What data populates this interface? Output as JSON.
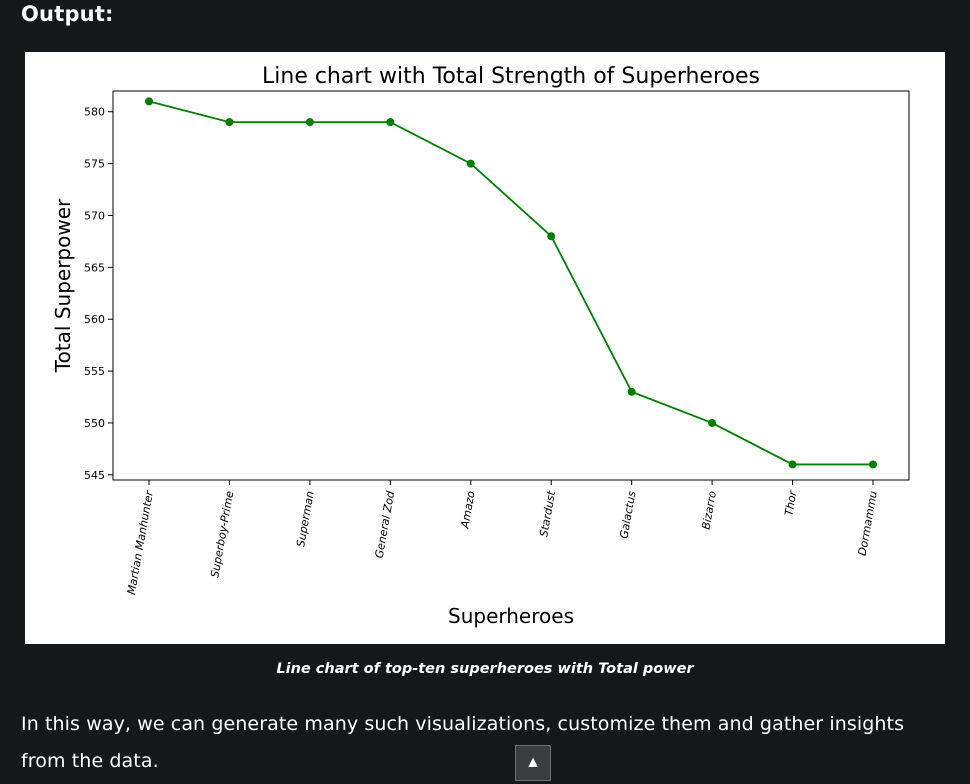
{
  "output_label": "Output:",
  "chart_data": {
    "type": "line",
    "title": "Line chart with Total Strength of Superheroes",
    "xlabel": "Superheroes",
    "ylabel": "Total Superpower",
    "categories": [
      "Martian Manhunter",
      "Superboy-Prime",
      "Superman",
      "General Zod",
      "Amazo",
      "Stardust",
      "Galactus",
      "Bizarro",
      "Thor",
      "Dormammu"
    ],
    "series": [
      {
        "values": [
          581,
          579,
          579,
          579,
          575,
          568,
          553,
          550,
          546,
          546
        ],
        "color": "#008000"
      }
    ],
    "ylim": [
      544.5,
      582
    ],
    "yticks": [
      545,
      550,
      555,
      560,
      565,
      570,
      575,
      580
    ],
    "grid": false
  },
  "caption": "Line chart of top-ten superheroes with Total power",
  "paragraph": "In this way, we can generate many such visualizations, customize them and gather insights from the data.",
  "scroll_top_icon": "▲",
  "colors": {
    "background": "#151719",
    "figure_bg": "#ffffff",
    "line": "#008000"
  }
}
